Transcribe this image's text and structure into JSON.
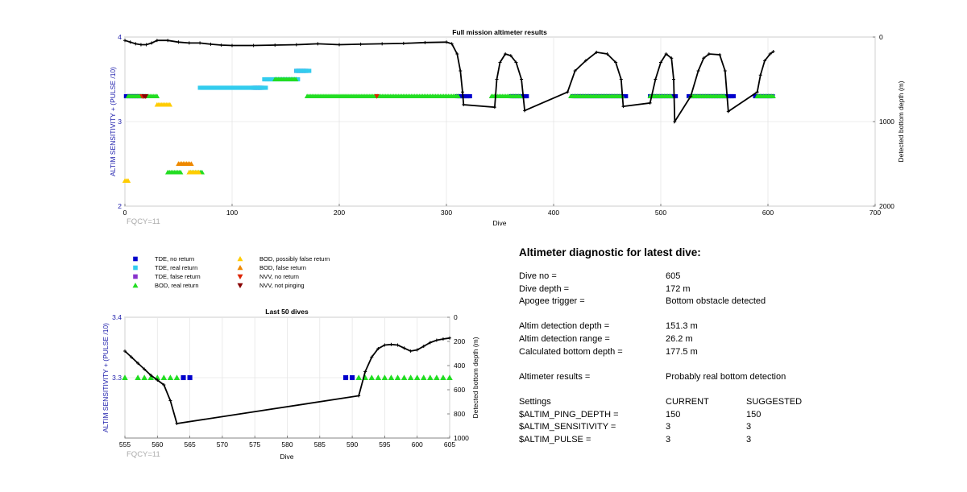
{
  "top_chart": {
    "title": "Full mission altimeter results",
    "xlabel": "Dive",
    "ylabel_left": "ALTIM SENSITIVITY + (PULSE /10)",
    "ylabel_right": "Detected bottom depth (m)",
    "xticks": [
      "0",
      "100",
      "200",
      "300",
      "400",
      "500",
      "600",
      "700"
    ],
    "yticks_left": [
      "2",
      "3",
      "4"
    ],
    "yticks_right": [
      "0",
      "1000",
      "2000"
    ],
    "fqcy_label": "FQCY=11"
  },
  "bottom_chart": {
    "title": "Last 50 dives",
    "xlabel": "Dive",
    "ylabel_left": "ALTIM SENSITIVITY + (PULSE /10)",
    "ylabel_right": "Detected bottom depth (m)",
    "xticks": [
      "555",
      "560",
      "565",
      "570",
      "575",
      "580",
      "585",
      "590",
      "595",
      "600",
      "605"
    ],
    "yticks_left": [
      "3.3",
      "3.4"
    ],
    "yticks_right": [
      "0",
      "200",
      "400",
      "600",
      "800",
      "1000"
    ],
    "fqcy_label": "FQCY=11"
  },
  "legend": [
    {
      "label": "TDE, no return",
      "marker": "square",
      "color": "#0000cc"
    },
    {
      "label": "TDE, real return",
      "marker": "square",
      "color": "#33ccee"
    },
    {
      "label": "TDE, false return",
      "marker": "square",
      "color": "#8833cc"
    },
    {
      "label": "BOD, real return",
      "marker": "triangle-up",
      "color": "#22dd22"
    },
    {
      "label": "BOD, possibly false return",
      "marker": "triangle-up",
      "color": "#ffcc00"
    },
    {
      "label": "BOD, false return",
      "marker": "triangle-up",
      "color": "#ee8800"
    },
    {
      "label": "NVV, no return",
      "marker": "triangle-down",
      "color": "#dd2200"
    },
    {
      "label": "NVV, not pinging",
      "marker": "triangle-down",
      "color": "#880000"
    }
  ],
  "diagnostic": {
    "title": "Altimeter diagnostic for latest dive:",
    "dive_no_label": "Dive no =",
    "dive_no": "605",
    "dive_depth_label": "Dive depth =",
    "dive_depth": "172 m",
    "apogee_label": "Apogee trigger =",
    "apogee": "Bottom obstacle detected",
    "det_depth_label": "Altim detection depth =",
    "det_depth": "151.3 m",
    "det_range_label": "Altim detection range =",
    "det_range": "26.2 m",
    "calc_depth_label": "Calculated bottom depth =",
    "calc_depth": "177.5 m",
    "results_label": "Altimeter results =",
    "results": "Probably real bottom detection",
    "settings_label": "Settings",
    "current_label": "CURRENT",
    "suggested_label": "SUGGESTED",
    "settings": [
      {
        "name": "$ALTIM_PING_DEPTH =",
        "current": "150",
        "suggested": "150"
      },
      {
        "name": "$ALTIM_SENSITIVITY =",
        "current": "3",
        "suggested": "3"
      },
      {
        "name": "$ALTIM_PULSE =",
        "current": "3",
        "suggested": "3"
      }
    ]
  },
  "chart_data": [
    {
      "type": "scatter",
      "title": "Full mission altimeter results",
      "xlabel": "Dive",
      "ylabel": "ALTIM SENSITIVITY + (PULSE /10)",
      "y2label": "Detected bottom depth (m)",
      "xlim": [
        0,
        700
      ],
      "ylim": [
        2,
        4
      ],
      "y2lim": [
        2000,
        0
      ],
      "grid": true,
      "series": [
        {
          "name": "TDE, no return",
          "color": "#0000cc",
          "segments": [
            [
              1,
              18,
              3.3
            ],
            [
              310,
              322,
              3.3
            ],
            [
              360,
              376,
              3.3
            ],
            [
              418,
              468,
              3.3
            ],
            [
              490,
              515,
              3.3
            ],
            [
              526,
              568,
              3.3
            ],
            [
              588,
              605,
              3.3
            ],
            [
              120,
              128,
              3.4
            ],
            [
              160,
              170,
              3.6
            ]
          ]
        },
        {
          "name": "TDE, real return",
          "color": "#33ccee",
          "segments": [
            [
              70,
              132,
              3.4
            ],
            [
              130,
              162,
              3.5
            ],
            [
              160,
              172,
              3.6
            ]
          ]
        },
        {
          "name": "BOD, real return",
          "color": "#22dd22",
          "segments": [
            [
              3,
              30,
              3.3
            ],
            [
              170,
              312,
              3.3
            ],
            [
              342,
              370,
              3.3
            ],
            [
              416,
              464,
              3.3
            ],
            [
              490,
              510,
              3.3
            ],
            [
              528,
              560,
              3.3
            ],
            [
              590,
              605,
              3.3
            ],
            [
              140,
              160,
              3.5
            ],
            [
              40,
              52,
              2.4
            ],
            [
              60,
              72,
              2.4
            ]
          ]
        },
        {
          "name": "BOD, possibly false return",
          "color": "#ffcc00",
          "segments": [
            [
              0,
              3,
              2.3
            ],
            [
              30,
              42,
              3.2
            ],
            [
              50,
              60,
              2.5
            ],
            [
              60,
              70,
              2.4
            ]
          ]
        },
        {
          "name": "BOD, false return",
          "color": "#ee8800",
          "segments": [
            [
              50,
              62,
              2.5
            ]
          ]
        },
        {
          "name": "NVV, no return",
          "color": "#dd2200",
          "segments": [
            [
              16,
              19,
              3.3
            ],
            [
              235,
              236,
              3.3
            ]
          ]
        },
        {
          "name": "NVV, not pinging",
          "color": "#880000",
          "segments": [
            [
              18,
              20,
              3.3
            ]
          ]
        }
      ],
      "bottom_depth": [
        [
          0,
          40
        ],
        [
          5,
          60
        ],
        [
          10,
          80
        ],
        [
          15,
          90
        ],
        [
          20,
          90
        ],
        [
          25,
          70
        ],
        [
          30,
          40
        ],
        [
          40,
          40
        ],
        [
          50,
          60
        ],
        [
          60,
          70
        ],
        [
          70,
          70
        ],
        [
          80,
          85
        ],
        [
          90,
          95
        ],
        [
          100,
          100
        ],
        [
          120,
          100
        ],
        [
          140,
          95
        ],
        [
          160,
          90
        ],
        [
          180,
          80
        ],
        [
          200,
          90
        ],
        [
          220,
          85
        ],
        [
          240,
          80
        ],
        [
          260,
          75
        ],
        [
          280,
          65
        ],
        [
          300,
          60
        ],
        [
          305,
          80
        ],
        [
          310,
          200
        ],
        [
          313,
          400
        ],
        [
          315,
          650
        ],
        [
          316,
          800
        ],
        [
          345,
          830
        ],
        [
          347,
          500
        ],
        [
          350,
          300
        ],
        [
          355,
          200
        ],
        [
          360,
          220
        ],
        [
          365,
          300
        ],
        [
          370,
          500
        ],
        [
          373,
          870
        ],
        [
          413,
          650
        ],
        [
          420,
          400
        ],
        [
          430,
          280
        ],
        [
          440,
          180
        ],
        [
          450,
          200
        ],
        [
          458,
          300
        ],
        [
          463,
          500
        ],
        [
          465,
          820
        ],
        [
          490,
          780
        ],
        [
          495,
          500
        ],
        [
          500,
          300
        ],
        [
          505,
          200
        ],
        [
          510,
          250
        ],
        [
          512,
          500
        ],
        [
          513,
          1000
        ],
        [
          528,
          700
        ],
        [
          535,
          400
        ],
        [
          540,
          250
        ],
        [
          545,
          200
        ],
        [
          555,
          210
        ],
        [
          560,
          400
        ],
        [
          563,
          880
        ],
        [
          590,
          650
        ],
        [
          593,
          450
        ],
        [
          597,
          280
        ],
        [
          602,
          200
        ],
        [
          605,
          172
        ]
      ]
    },
    {
      "type": "scatter",
      "title": "Last 50 dives",
      "xlabel": "Dive",
      "ylabel": "ALTIM SENSITIVITY + (PULSE /10)",
      "y2label": "Detected bottom depth (m)",
      "xlim": [
        555,
        605
      ],
      "ylim": [
        3.2,
        3.4
      ],
      "y2lim": [
        1000,
        0
      ],
      "grid": true,
      "series": [
        {
          "name": "BOD, real return",
          "color": "#22dd22",
          "x": [
            555,
            557,
            558,
            559,
            560,
            561,
            562,
            563,
            591,
            592,
            593,
            594,
            595,
            596,
            597,
            598,
            599,
            600,
            601,
            602,
            603,
            604,
            605
          ],
          "y": [
            3.3,
            3.3,
            3.3,
            3.3,
            3.3,
            3.3,
            3.3,
            3.3,
            3.3,
            3.3,
            3.3,
            3.3,
            3.3,
            3.3,
            3.3,
            3.3,
            3.3,
            3.3,
            3.3,
            3.3,
            3.3,
            3.3,
            3.3
          ]
        },
        {
          "name": "TDE, no return",
          "color": "#0000cc",
          "x": [
            564,
            565,
            589,
            590
          ],
          "y": [
            3.3,
            3.3,
            3.3,
            3.3
          ]
        }
      ],
      "bottom_depth": [
        [
          555,
          280
        ],
        [
          556,
          330
        ],
        [
          557,
          380
        ],
        [
          558,
          430
        ],
        [
          559,
          480
        ],
        [
          560,
          520
        ],
        [
          561,
          560
        ],
        [
          562,
          690
        ],
        [
          563,
          880
        ],
        [
          591,
          650
        ],
        [
          592,
          450
        ],
        [
          593,
          330
        ],
        [
          594,
          260
        ],
        [
          595,
          230
        ],
        [
          596,
          225
        ],
        [
          597,
          230
        ],
        [
          598,
          255
        ],
        [
          599,
          280
        ],
        [
          600,
          270
        ],
        [
          601,
          240
        ],
        [
          602,
          210
        ],
        [
          603,
          190
        ],
        [
          604,
          180
        ],
        [
          605,
          172
        ]
      ]
    }
  ]
}
